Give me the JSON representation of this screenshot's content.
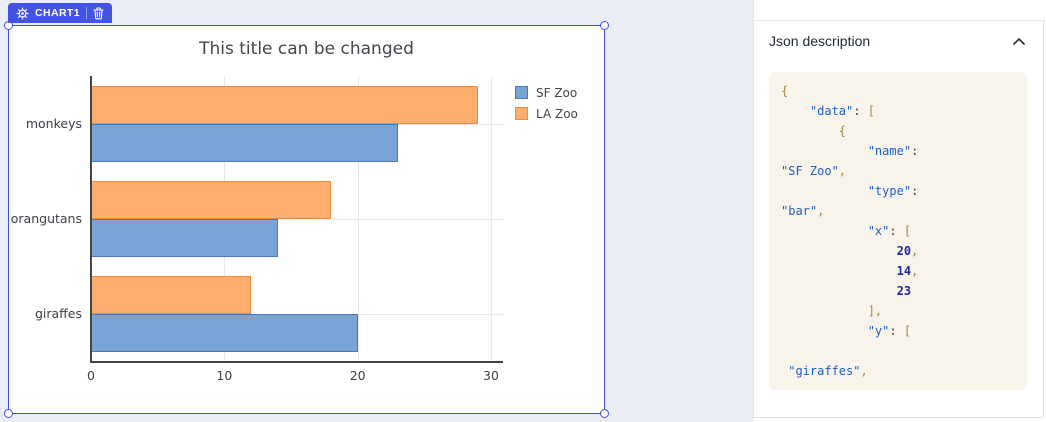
{
  "badge": {
    "label": "CHART1"
  },
  "colors": {
    "selection_accent": "#3d52e8",
    "badge_bg": "#4353e8",
    "canvas_bg": "#ebedf5",
    "code_bg": "#f8f4ec",
    "sf_zoo_fill": "#7aa4d6",
    "sf_zoo_stroke": "#4b77b3",
    "la_zoo_fill": "#fcae6e",
    "la_zoo_stroke": "#ef8b3d"
  },
  "chart_data": {
    "type": "bar",
    "orientation": "horizontal",
    "title": "This title can be changed",
    "categories_top_to_bottom": [
      "monkeys",
      "orangutans",
      "giraffes"
    ],
    "series": [
      {
        "name": "SF Zoo",
        "color": "#7aa4d6",
        "stroke": "#4b77b3",
        "values_top_to_bottom": [
          23,
          14,
          20
        ]
      },
      {
        "name": "LA Zoo",
        "color": "#fcae6e",
        "stroke": "#ef8b3d",
        "values_top_to_bottom": [
          29,
          18,
          12
        ]
      }
    ],
    "x_ticks": [
      0,
      10,
      20,
      30
    ],
    "xlim": [
      0,
      30.9
    ],
    "grid": true,
    "legend_position": "top-right"
  },
  "json_panel": {
    "header": "Json description",
    "collapse_icon": "chevron-up-icon",
    "code_lines": [
      [
        [
          "p",
          "{"
        ]
      ],
      [
        [
          "w",
          "    "
        ],
        [
          "s",
          "\"data\""
        ],
        [
          "c",
          ":"
        ],
        [
          "w",
          " "
        ],
        [
          "p",
          "["
        ]
      ],
      [
        [
          "w",
          "        "
        ],
        [
          "p",
          "{"
        ]
      ],
      [
        [
          "w",
          "            "
        ],
        [
          "s",
          "\"name\""
        ],
        [
          "c",
          ":"
        ]
      ],
      [
        [
          "s",
          "\"SF Zoo\""
        ],
        [
          "p",
          ","
        ]
      ],
      [
        [
          "w",
          "            "
        ],
        [
          "s",
          "\"type\""
        ],
        [
          "c",
          ":"
        ]
      ],
      [
        [
          "s",
          "\"bar\""
        ],
        [
          "p",
          ","
        ]
      ],
      [
        [
          "w",
          "            "
        ],
        [
          "s",
          "\"x\""
        ],
        [
          "c",
          ":"
        ],
        [
          "w",
          " "
        ],
        [
          "p",
          "["
        ]
      ],
      [
        [
          "w",
          "                "
        ],
        [
          "n",
          "20"
        ],
        [
          "p",
          ","
        ]
      ],
      [
        [
          "w",
          "                "
        ],
        [
          "n",
          "14"
        ],
        [
          "p",
          ","
        ]
      ],
      [
        [
          "w",
          "                "
        ],
        [
          "n",
          "23"
        ]
      ],
      [
        [
          "w",
          "            "
        ],
        [
          "p",
          "],"
        ]
      ],
      [
        [
          "w",
          "            "
        ],
        [
          "s",
          "\"y\""
        ],
        [
          "c",
          ":"
        ],
        [
          "w",
          " "
        ],
        [
          "p",
          "["
        ]
      ],
      [],
      [
        [
          "w",
          " "
        ],
        [
          "s",
          "\"giraffes\""
        ],
        [
          "p",
          ","
        ]
      ]
    ]
  }
}
